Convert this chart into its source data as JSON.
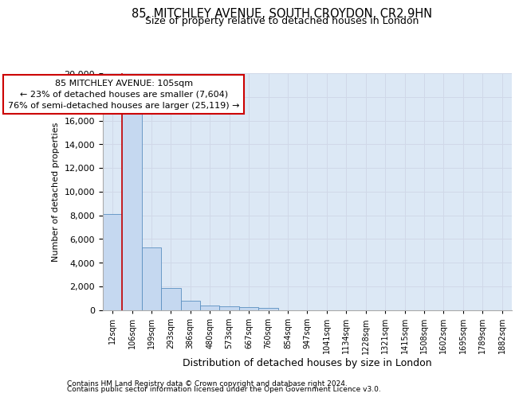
{
  "title1": "85, MITCHLEY AVENUE, SOUTH CROYDON, CR2 9HN",
  "title2": "Size of property relative to detached houses in London",
  "xlabel": "Distribution of detached houses by size in London",
  "ylabel": "Number of detached properties",
  "categories": [
    "12sqm",
    "106sqm",
    "199sqm",
    "293sqm",
    "386sqm",
    "480sqm",
    "573sqm",
    "667sqm",
    "760sqm",
    "854sqm",
    "947sqm",
    "1041sqm",
    "1134sqm",
    "1228sqm",
    "1321sqm",
    "1415sqm",
    "1508sqm",
    "1602sqm",
    "1695sqm",
    "1789sqm",
    "1882sqm"
  ],
  "bar_heights": [
    8100,
    16600,
    5300,
    1850,
    750,
    350,
    270,
    220,
    170,
    0,
    0,
    0,
    0,
    0,
    0,
    0,
    0,
    0,
    0,
    0,
    0
  ],
  "bar_color": "#c5d8f0",
  "bar_edge_color": "#5a8fc0",
  "annotation_line1": "85 MITCHLEY AVENUE: 105sqm",
  "annotation_line2": "← 23% of detached houses are smaller (7,604)",
  "annotation_line3": "76% of semi-detached houses are larger (25,119) →",
  "annotation_box_facecolor": "#ffffff",
  "annotation_box_edgecolor": "#cc0000",
  "property_line_color": "#cc0000",
  "property_line_x": 0.5,
  "ylim": [
    0,
    20000
  ],
  "yticks": [
    0,
    2000,
    4000,
    6000,
    8000,
    10000,
    12000,
    14000,
    16000,
    18000,
    20000
  ],
  "grid_color": "#d0d8e8",
  "bg_color": "#dce8f5",
  "fig_bg_color": "#ffffff",
  "title1_fontsize": 10.5,
  "title2_fontsize": 9,
  "ylabel_fontsize": 8,
  "xlabel_fontsize": 9,
  "ytick_fontsize": 8,
  "xtick_fontsize": 7,
  "footer1": "Contains HM Land Registry data © Crown copyright and database right 2024.",
  "footer2": "Contains public sector information licensed under the Open Government Licence v3.0.",
  "footer_fontsize": 6.5
}
